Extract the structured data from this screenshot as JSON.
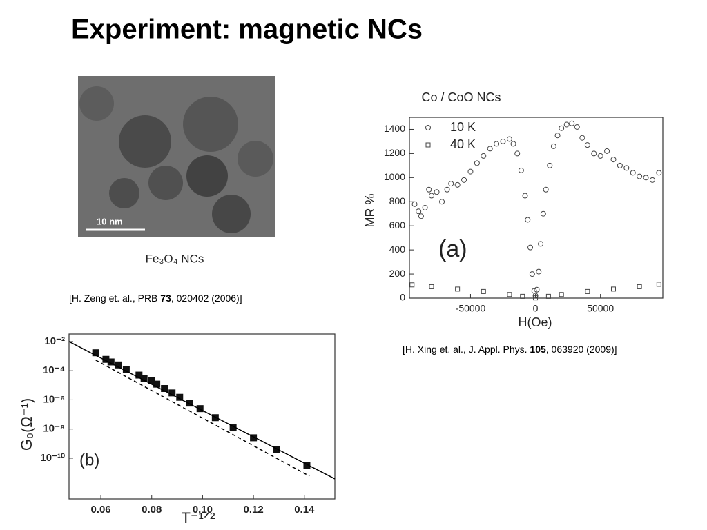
{
  "title": "Experiment: magnetic NCs",
  "image": {
    "scale_label": "10 nm",
    "caption": "Fe₃O₄ NCs"
  },
  "references": [
    [
      "[H. Zeng et. al., PRB ",
      "73",
      ", 020402 (2006)]"
    ],
    [
      "[H. Xing et. al., J. Appl. Phys. ",
      "105",
      ", 063920 (2009)]"
    ]
  ],
  "chart_data": [
    {
      "type": "scatter",
      "title": "Co / CoO NCs",
      "x_label": "H(Oe)",
      "y_label": "MR %",
      "annotation": "(a)",
      "xlim": [
        -97000,
        98000
      ],
      "ylim": [
        0,
        1500
      ],
      "xticks": [
        -50000,
        0,
        50000
      ],
      "yticks": [
        0,
        200,
        400,
        600,
        800,
        1000,
        1200,
        1400
      ],
      "legend": "upper-left",
      "series": [
        {
          "name": "10 K",
          "marker": "circle",
          "color": "#444444",
          "x": [
            -93000,
            -90000,
            -88000,
            -85000,
            -82000,
            -80000,
            -76000,
            -72000,
            -68000,
            -65000,
            -60000,
            -55000,
            -50000,
            -45000,
            -40000,
            -35000,
            -30000,
            -25000,
            -20000,
            -17000,
            -14000,
            -11000,
            -8000,
            -6000,
            -4000,
            -2500,
            -1000,
            0,
            1000,
            2500,
            4000,
            6000,
            8000,
            11000,
            14000,
            17000,
            20000,
            24000,
            28000,
            32000,
            36000,
            40000,
            45000,
            50000,
            55000,
            60000,
            65000,
            70000,
            75000,
            80000,
            85000,
            90000,
            95000
          ],
          "values": [
            780,
            720,
            680,
            750,
            900,
            850,
            880,
            800,
            900,
            950,
            940,
            980,
            1050,
            1120,
            1180,
            1240,
            1280,
            1300,
            1320,
            1280,
            1200,
            1060,
            850,
            650,
            420,
            200,
            60,
            20,
            70,
            220,
            450,
            700,
            900,
            1100,
            1260,
            1350,
            1410,
            1440,
            1450,
            1420,
            1330,
            1270,
            1200,
            1180,
            1220,
            1150,
            1100,
            1080,
            1040,
            1010,
            1000,
            980,
            1040
          ]
        },
        {
          "name": "40 K",
          "marker": "square",
          "color": "#444444",
          "x": [
            -95000,
            -80000,
            -60000,
            -40000,
            -20000,
            -10000,
            0,
            10000,
            20000,
            40000,
            60000,
            80000,
            95000
          ],
          "values": [
            110,
            95,
            75,
            55,
            30,
            15,
            2,
            15,
            30,
            55,
            75,
            95,
            115
          ]
        }
      ]
    },
    {
      "type": "scatter",
      "x_label": "T⁻¹ᐟ²",
      "y_label": "G₀(Ω⁻¹)",
      "annotation": "(b)",
      "log_y": true,
      "xlim": [
        0.0475,
        0.152
      ],
      "ylim": [
        1.6e-13,
        0.033
      ],
      "xticks": [
        0.06,
        0.08,
        {
          "value": 0.1,
          "label": "0.10"
        },
        0.12,
        0.14
      ],
      "yticks": [
        {
          "value": 0.01,
          "label": "10⁻²"
        },
        {
          "value": 0.0001,
          "label": "10⁻⁴"
        },
        {
          "value": 1e-06,
          "label": "10⁻⁶"
        },
        {
          "value": 1e-08,
          "label": "10⁻⁸"
        },
        {
          "value": 1e-10,
          "label": "10⁻¹⁰"
        }
      ],
      "series": [
        {
          "marker": "square",
          "color": "#111111",
          "x": [
            0.058,
            0.062,
            0.064,
            0.067,
            0.07,
            0.075,
            0.077,
            0.08,
            0.082,
            0.085,
            0.088,
            0.091,
            0.095,
            0.099,
            0.105,
            0.112,
            0.12,
            0.129,
            0.141
          ],
          "values": [
            0.0017,
            0.0006,
            0.0004,
            0.00025,
            0.00012,
            5e-05,
            3e-05,
            2e-05,
            1.2e-05,
            6e-06,
            3e-06,
            1.5e-06,
            6e-07,
            2.5e-07,
            6e-08,
            1.2e-08,
            2.5e-09,
            4e-10,
            3e-11
          ]
        },
        {
          "marker": "none",
          "line_style": "solid",
          "color": "#000000",
          "x": [
            0.0475,
            0.152
          ],
          "values": [
            0.01,
            3.8e-12
          ]
        },
        {
          "marker": "none",
          "line_style": "dashed",
          "color": "#000000",
          "x": [
            0.058,
            0.142
          ],
          "values": [
            0.00053,
            5.9e-12
          ]
        }
      ]
    }
  ]
}
